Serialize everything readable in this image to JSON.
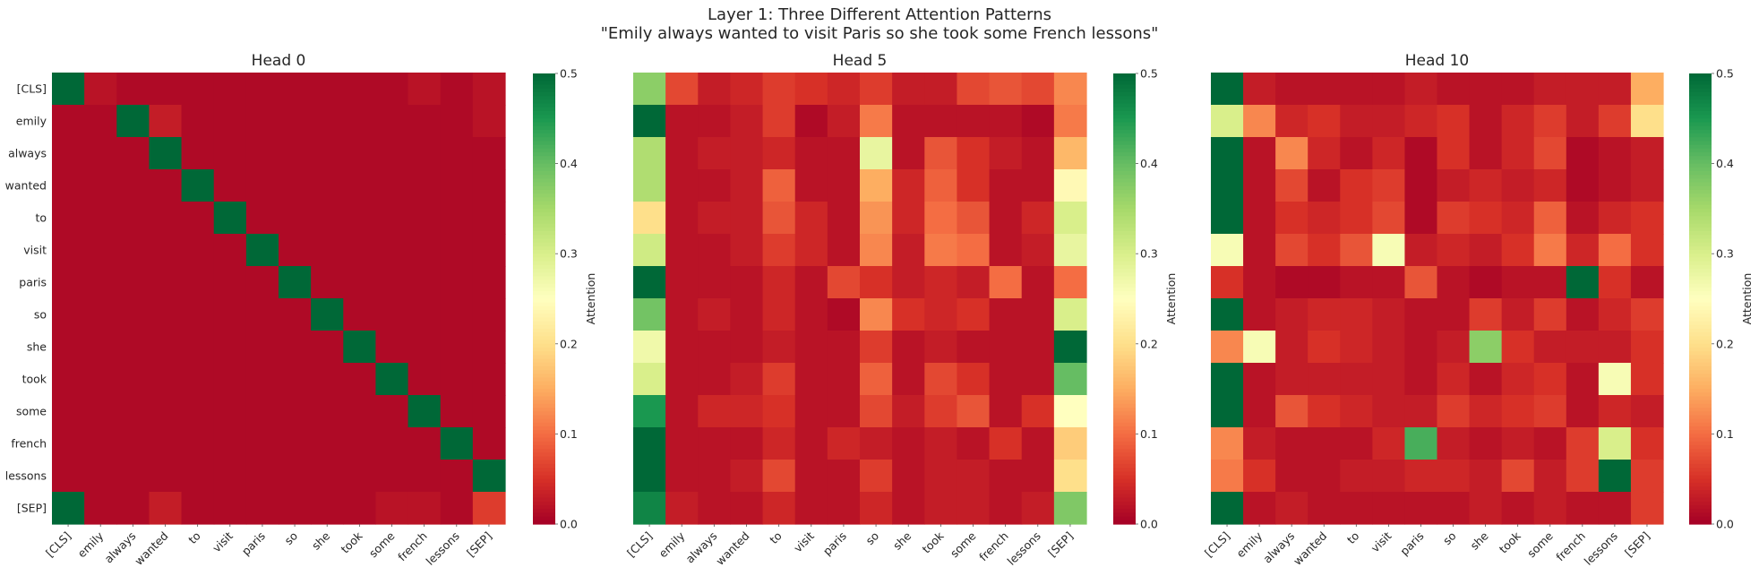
{
  "figure": {
    "title_line1": "Layer 1: Three Different Attention Patterns",
    "title_line2": "\"Emily always wanted to visit Paris so she took some French lessons\""
  },
  "chart_data": [
    {
      "type": "heatmap",
      "title": "Head 0",
      "x_tick_labels": [
        "[CLS]",
        "emily",
        "always",
        "wanted",
        "to",
        "visit",
        "paris",
        "so",
        "she",
        "took",
        "some",
        "french",
        "lessons",
        "[SEP]"
      ],
      "y_tick_labels": [
        "[CLS]",
        "emily",
        "always",
        "wanted",
        "to",
        "visit",
        "paris",
        "so",
        "she",
        "took",
        "some",
        "french",
        "lessons",
        "[SEP]"
      ],
      "colorbar": {
        "label": "Attention",
        "range": [
          0.0,
          0.5
        ],
        "ticks": [
          "0.0",
          "0.1",
          "0.2",
          "0.3",
          "0.4",
          "0.5"
        ],
        "colormap": "RdYlGn"
      },
      "values": [
        [
          0.5,
          0.02,
          0.01,
          0.01,
          0.01,
          0.01,
          0.01,
          0.01,
          0.01,
          0.01,
          0.01,
          0.02,
          0.01,
          0.02
        ],
        [
          0.01,
          0.01,
          0.5,
          0.03,
          0.01,
          0.01,
          0.01,
          0.01,
          0.01,
          0.01,
          0.01,
          0.01,
          0.01,
          0.02
        ],
        [
          0.01,
          0.01,
          0.01,
          0.5,
          0.01,
          0.01,
          0.01,
          0.01,
          0.01,
          0.01,
          0.01,
          0.01,
          0.01,
          0.01
        ],
        [
          0.01,
          0.01,
          0.01,
          0.01,
          0.5,
          0.01,
          0.01,
          0.01,
          0.01,
          0.01,
          0.01,
          0.01,
          0.01,
          0.01
        ],
        [
          0.01,
          0.01,
          0.01,
          0.01,
          0.01,
          0.5,
          0.01,
          0.01,
          0.01,
          0.01,
          0.01,
          0.01,
          0.01,
          0.01
        ],
        [
          0.01,
          0.01,
          0.01,
          0.01,
          0.01,
          0.01,
          0.5,
          0.01,
          0.01,
          0.01,
          0.01,
          0.01,
          0.01,
          0.01
        ],
        [
          0.01,
          0.01,
          0.01,
          0.01,
          0.01,
          0.01,
          0.01,
          0.5,
          0.01,
          0.01,
          0.01,
          0.01,
          0.01,
          0.01
        ],
        [
          0.01,
          0.01,
          0.01,
          0.01,
          0.01,
          0.01,
          0.01,
          0.01,
          0.5,
          0.01,
          0.01,
          0.01,
          0.01,
          0.01
        ],
        [
          0.01,
          0.01,
          0.01,
          0.01,
          0.01,
          0.01,
          0.01,
          0.01,
          0.01,
          0.5,
          0.01,
          0.01,
          0.01,
          0.01
        ],
        [
          0.01,
          0.01,
          0.01,
          0.01,
          0.01,
          0.01,
          0.01,
          0.01,
          0.01,
          0.01,
          0.5,
          0.01,
          0.01,
          0.01
        ],
        [
          0.01,
          0.01,
          0.01,
          0.01,
          0.01,
          0.01,
          0.01,
          0.01,
          0.01,
          0.01,
          0.01,
          0.5,
          0.01,
          0.01
        ],
        [
          0.01,
          0.01,
          0.01,
          0.01,
          0.01,
          0.01,
          0.01,
          0.01,
          0.01,
          0.01,
          0.01,
          0.01,
          0.5,
          0.01
        ],
        [
          0.01,
          0.01,
          0.01,
          0.01,
          0.01,
          0.01,
          0.01,
          0.01,
          0.01,
          0.01,
          0.01,
          0.01,
          0.01,
          0.5
        ],
        [
          0.5,
          0.01,
          0.01,
          0.03,
          0.01,
          0.01,
          0.01,
          0.01,
          0.01,
          0.01,
          0.02,
          0.02,
          0.01,
          0.06
        ]
      ]
    },
    {
      "type": "heatmap",
      "title": "Head 5",
      "x_tick_labels": [
        "[CLS]",
        "emily",
        "always",
        "wanted",
        "to",
        "visit",
        "paris",
        "so",
        "she",
        "took",
        "some",
        "french",
        "lessons",
        "[SEP]"
      ],
      "y_tick_labels": [],
      "colorbar": {
        "label": "Attention",
        "range": [
          0.0,
          0.5
        ],
        "ticks": [
          "0.0",
          "0.1",
          "0.2",
          "0.3",
          "0.4",
          "0.5"
        ],
        "colormap": "RdYlGn"
      },
      "values": [
        [
          0.37,
          0.07,
          0.03,
          0.04,
          0.06,
          0.05,
          0.04,
          0.06,
          0.03,
          0.03,
          0.07,
          0.08,
          0.07,
          0.12
        ],
        [
          0.5,
          0.02,
          0.02,
          0.03,
          0.06,
          0.01,
          0.03,
          0.11,
          0.02,
          0.02,
          0.02,
          0.02,
          0.01,
          0.11
        ],
        [
          0.34,
          0.02,
          0.03,
          0.03,
          0.04,
          0.02,
          0.02,
          0.28,
          0.02,
          0.08,
          0.05,
          0.03,
          0.02,
          0.16
        ],
        [
          0.34,
          0.02,
          0.02,
          0.03,
          0.09,
          0.02,
          0.02,
          0.15,
          0.04,
          0.09,
          0.05,
          0.02,
          0.02,
          0.24
        ],
        [
          0.2,
          0.02,
          0.03,
          0.03,
          0.08,
          0.04,
          0.02,
          0.13,
          0.04,
          0.1,
          0.08,
          0.02,
          0.04,
          0.3
        ],
        [
          0.31,
          0.02,
          0.02,
          0.03,
          0.06,
          0.04,
          0.02,
          0.12,
          0.03,
          0.11,
          0.1,
          0.02,
          0.03,
          0.28
        ],
        [
          0.5,
          0.02,
          0.02,
          0.02,
          0.04,
          0.02,
          0.07,
          0.05,
          0.03,
          0.04,
          0.03,
          0.1,
          0.02,
          0.1
        ],
        [
          0.39,
          0.02,
          0.03,
          0.02,
          0.04,
          0.02,
          0.01,
          0.12,
          0.05,
          0.04,
          0.05,
          0.02,
          0.02,
          0.3
        ],
        [
          0.27,
          0.02,
          0.02,
          0.02,
          0.03,
          0.02,
          0.02,
          0.06,
          0.02,
          0.03,
          0.02,
          0.02,
          0.02,
          0.5
        ],
        [
          0.3,
          0.02,
          0.02,
          0.03,
          0.06,
          0.02,
          0.02,
          0.09,
          0.02,
          0.07,
          0.05,
          0.02,
          0.02,
          0.4
        ],
        [
          0.45,
          0.02,
          0.04,
          0.04,
          0.05,
          0.02,
          0.02,
          0.07,
          0.03,
          0.06,
          0.08,
          0.02,
          0.05,
          0.25
        ],
        [
          0.5,
          0.02,
          0.02,
          0.02,
          0.04,
          0.02,
          0.04,
          0.03,
          0.02,
          0.03,
          0.02,
          0.05,
          0.02,
          0.18
        ],
        [
          0.5,
          0.02,
          0.02,
          0.03,
          0.07,
          0.02,
          0.02,
          0.06,
          0.02,
          0.03,
          0.03,
          0.02,
          0.02,
          0.2
        ],
        [
          0.47,
          0.03,
          0.02,
          0.02,
          0.04,
          0.02,
          0.02,
          0.04,
          0.02,
          0.03,
          0.03,
          0.02,
          0.03,
          0.38
        ]
      ]
    },
    {
      "type": "heatmap",
      "title": "Head 10",
      "x_tick_labels": [
        "[CLS]",
        "emily",
        "always",
        "wanted",
        "to",
        "visit",
        "paris",
        "so",
        "she",
        "took",
        "some",
        "french",
        "lessons",
        "[SEP]"
      ],
      "y_tick_labels": [],
      "colorbar": {
        "label": "Attention",
        "range": [
          0.0,
          0.5
        ],
        "ticks": [
          "0.0",
          "0.1",
          "0.2",
          "0.3",
          "0.4",
          "0.5"
        ],
        "colormap": "RdYlGn"
      },
      "values": [
        [
          0.5,
          0.03,
          0.02,
          0.02,
          0.02,
          0.02,
          0.03,
          0.02,
          0.02,
          0.02,
          0.03,
          0.03,
          0.03,
          0.15
        ],
        [
          0.3,
          0.12,
          0.04,
          0.05,
          0.03,
          0.03,
          0.04,
          0.05,
          0.02,
          0.04,
          0.06,
          0.03,
          0.06,
          0.2
        ],
        [
          0.5,
          0.02,
          0.12,
          0.04,
          0.02,
          0.04,
          0.01,
          0.05,
          0.02,
          0.04,
          0.07,
          0.01,
          0.02,
          0.03
        ],
        [
          0.5,
          0.02,
          0.07,
          0.02,
          0.05,
          0.06,
          0.01,
          0.03,
          0.04,
          0.03,
          0.04,
          0.01,
          0.02,
          0.03
        ],
        [
          0.5,
          0.02,
          0.05,
          0.04,
          0.05,
          0.07,
          0.01,
          0.06,
          0.05,
          0.04,
          0.09,
          0.02,
          0.04,
          0.05
        ],
        [
          0.26,
          0.02,
          0.07,
          0.05,
          0.08,
          0.26,
          0.03,
          0.04,
          0.03,
          0.05,
          0.11,
          0.04,
          0.1,
          0.05
        ],
        [
          0.05,
          0.02,
          0.01,
          0.01,
          0.02,
          0.02,
          0.08,
          0.02,
          0.01,
          0.02,
          0.02,
          0.5,
          0.05,
          0.02
        ],
        [
          0.5,
          0.02,
          0.03,
          0.04,
          0.04,
          0.03,
          0.02,
          0.02,
          0.06,
          0.03,
          0.06,
          0.02,
          0.04,
          0.06
        ],
        [
          0.12,
          0.26,
          0.03,
          0.05,
          0.04,
          0.03,
          0.02,
          0.03,
          0.37,
          0.05,
          0.03,
          0.03,
          0.03,
          0.05
        ],
        [
          0.5,
          0.02,
          0.03,
          0.03,
          0.03,
          0.03,
          0.02,
          0.04,
          0.02,
          0.04,
          0.05,
          0.02,
          0.26,
          0.05
        ],
        [
          0.5,
          0.02,
          0.08,
          0.05,
          0.04,
          0.03,
          0.03,
          0.06,
          0.04,
          0.05,
          0.06,
          0.02,
          0.04,
          0.03
        ],
        [
          0.12,
          0.03,
          0.02,
          0.02,
          0.02,
          0.04,
          0.42,
          0.03,
          0.02,
          0.03,
          0.02,
          0.06,
          0.3,
          0.05
        ],
        [
          0.11,
          0.05,
          0.02,
          0.02,
          0.03,
          0.03,
          0.04,
          0.04,
          0.03,
          0.07,
          0.03,
          0.06,
          0.5,
          0.06
        ],
        [
          0.5,
          0.02,
          0.03,
          0.02,
          0.02,
          0.02,
          0.02,
          0.02,
          0.03,
          0.02,
          0.03,
          0.02,
          0.02,
          0.06
        ]
      ]
    }
  ]
}
